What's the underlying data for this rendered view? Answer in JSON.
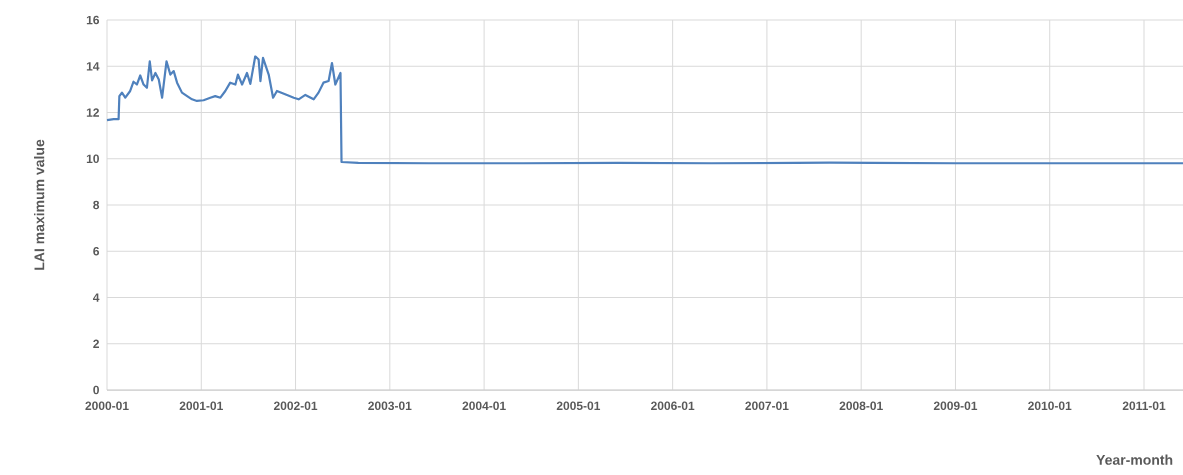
{
  "chart_data": {
    "type": "line",
    "xlabel": "Year-month",
    "ylabel": "LAI maximum value",
    "x": [
      "2000-01-01",
      "2000-01-27",
      "2000-02-15",
      "2000-02-18",
      "2000-02-28",
      "2000-03-12",
      "2000-03-31",
      "2000-04-13",
      "2000-04-26",
      "2000-05-09",
      "2000-05-22",
      "2000-06-04",
      "2000-06-15",
      "2000-06-24",
      "2000-07-07",
      "2000-07-20",
      "2000-08-02",
      "2000-08-19",
      "2000-09-03",
      "2000-09-16",
      "2000-09-29",
      "2000-10-18",
      "2000-11-07",
      "2000-11-26",
      "2000-12-15",
      "2001-01-10",
      "2001-02-05",
      "2001-02-24",
      "2001-03-16",
      "2001-04-04",
      "2001-04-23",
      "2001-05-13",
      "2001-05-23",
      "2001-06-08",
      "2001-06-27",
      "2001-07-10",
      "2001-07-29",
      "2001-08-11",
      "2001-08-18",
      "2001-08-28",
      "2001-09-19",
      "2001-10-06",
      "2001-10-21",
      "2001-11-29",
      "2001-12-25",
      "2002-01-13",
      "2002-02-08",
      "2002-03-12",
      "2002-03-31",
      "2002-04-19",
      "2002-05-09",
      "2002-05-22",
      "2002-06-04",
      "2002-06-24",
      "2002-06-28",
      "2002-09-01",
      "2003-06-01",
      "2004-06-01",
      "2005-06-01",
      "2006-06-01",
      "2007-09-01",
      "2009-01-01",
      "2010-06-01",
      "2011-06-01"
    ],
    "series": [
      {
        "color": "#4f81bd",
        "values": [
          11.67,
          11.71,
          11.71,
          12.71,
          12.86,
          12.64,
          12.93,
          13.33,
          13.21,
          13.6,
          13.21,
          13.07,
          14.21,
          13.39,
          13.71,
          13.43,
          12.64,
          14.21,
          13.64,
          13.79,
          13.29,
          12.86,
          12.71,
          12.57,
          12.5,
          12.53,
          12.64,
          12.71,
          12.64,
          12.93,
          13.29,
          13.21,
          13.64,
          13.21,
          13.71,
          13.24,
          14.43,
          14.29,
          13.36,
          14.36,
          13.64,
          12.64,
          12.93,
          12.76,
          12.64,
          12.57,
          12.76,
          12.57,
          12.86,
          13.29,
          13.36,
          14.14,
          13.21,
          13.71,
          9.86,
          9.82,
          9.8,
          9.8,
          9.82,
          9.8,
          9.83,
          9.8,
          9.8,
          9.8
        ]
      }
    ],
    "xlim": [
      "2000-01",
      "2011-06"
    ],
    "xticks": [
      "2000-01",
      "2001-01",
      "2002-01",
      "2003-01",
      "2004-01",
      "2005-01",
      "2006-01",
      "2007-01",
      "2008-01",
      "2009-01",
      "2010-01",
      "2011-01"
    ],
    "ylim": [
      0,
      16
    ],
    "yticks": [
      0,
      2,
      4,
      6,
      8,
      10,
      12,
      14,
      16
    ],
    "grid": true,
    "line_style": "solid",
    "marker": "none"
  }
}
